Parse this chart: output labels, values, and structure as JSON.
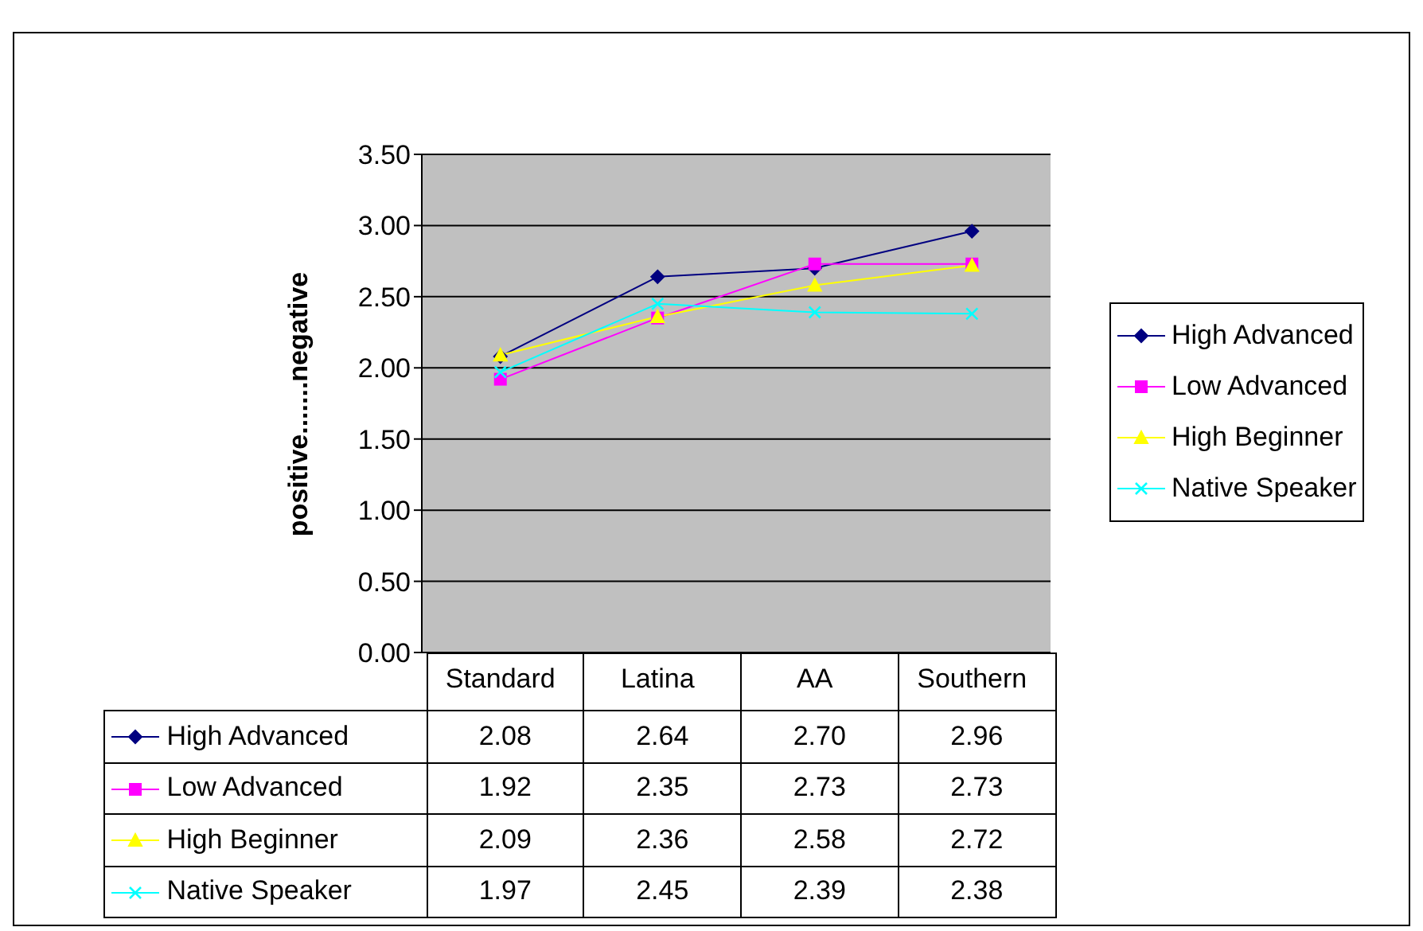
{
  "chart_data": {
    "type": "line",
    "ylabel": "positive.......negative",
    "categories": [
      "Standard",
      "Latina",
      "AA",
      "Southern"
    ],
    "series": [
      {
        "name": "High Advanced",
        "color": "#000080",
        "marker": "diamond",
        "values": [
          2.08,
          2.64,
          2.7,
          2.96
        ],
        "value_labels": [
          "2.08",
          "2.64",
          "2.70",
          "2.96"
        ]
      },
      {
        "name": "Low Advanced",
        "color": "#ff00ff",
        "marker": "square",
        "values": [
          1.92,
          2.35,
          2.73,
          2.73
        ],
        "value_labels": [
          "1.92",
          "2.35",
          "2.73",
          "2.73"
        ]
      },
      {
        "name": "High Beginner",
        "color": "#ffff00",
        "marker": "triangle",
        "values": [
          2.09,
          2.36,
          2.58,
          2.72
        ],
        "value_labels": [
          "2.09",
          "2.36",
          "2.58",
          "2.72"
        ]
      },
      {
        "name": "Native Speaker",
        "color": "#00ffff",
        "marker": "cross",
        "values": [
          1.97,
          2.45,
          2.39,
          2.38
        ],
        "value_labels": [
          "1.97",
          "2.45",
          "2.39",
          "2.38"
        ]
      }
    ],
    "ylim": [
      0,
      3.5
    ],
    "yticks": [
      {
        "value": 0,
        "label": "0.00"
      },
      {
        "value": 0.5,
        "label": "0.50"
      },
      {
        "value": 1,
        "label": "1.00"
      },
      {
        "value": 1.5,
        "label": "1.50"
      },
      {
        "value": 2,
        "label": "2.00"
      },
      {
        "value": 2.5,
        "label": "2.50"
      },
      {
        "value": 3,
        "label": "3.00"
      },
      {
        "value": 3.5,
        "label": "3.50"
      }
    ],
    "grid": "y",
    "legend": "right",
    "line_style": "solid"
  }
}
